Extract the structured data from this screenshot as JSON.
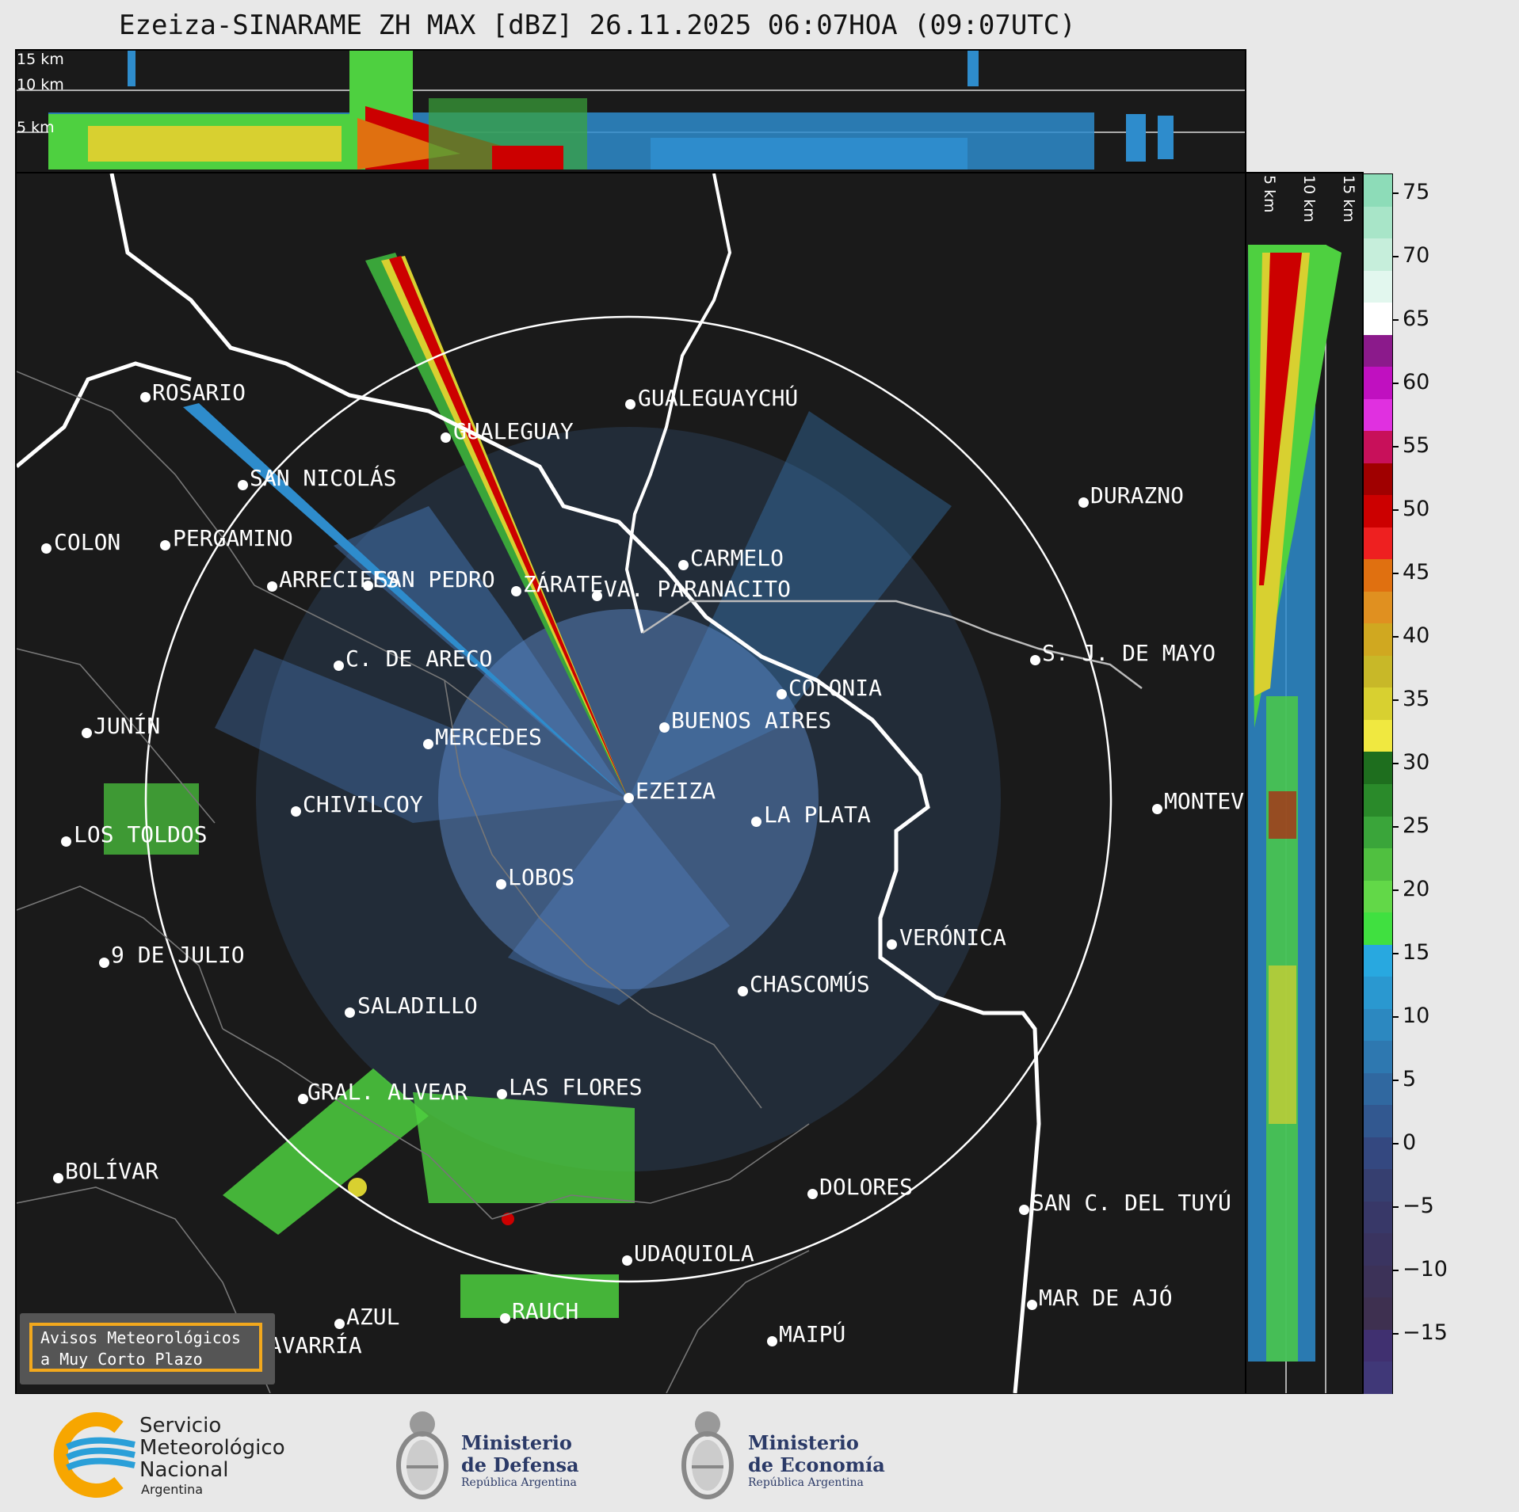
{
  "title": "Ezeiza-SINARAME ZH MAX [dBZ] 26.11.2025 06:07HOA (09:07UTC)",
  "top_panel": {
    "altitudes": [
      "15 km",
      "10 km",
      "5 km"
    ]
  },
  "side_panel": {
    "altitudes": [
      "5 km",
      "10 km",
      "15 km"
    ]
  },
  "colorbar": {
    "ticks": [
      "75",
      "70",
      "65",
      "60",
      "55",
      "50",
      "45",
      "40",
      "35",
      "30",
      "25",
      "20",
      "15",
      "10",
      "5",
      "0",
      "−5",
      "−10",
      "−15"
    ],
    "segments": [
      "#8ddcb8",
      "#a8e5c8",
      "#c6eedb",
      "#e2f7ee",
      "#ffffff",
      "#8b1a8b",
      "#c010c0",
      "#e030e0",
      "#c8105a",
      "#a00000",
      "#cc0000",
      "#ee2020",
      "#e07010",
      "#e09020",
      "#d0a820",
      "#c8b828",
      "#d8d030",
      "#f0e840",
      "#1e6e1e",
      "#2a8a2a",
      "#3aa53a",
      "#50c040",
      "#62d848",
      "#40e040",
      "#28a8e0",
      "#2a98d0",
      "#2c88c0",
      "#2e78b0",
      "#3068a0",
      "#325890",
      "#344880",
      "#363f70",
      "#383868",
      "#3a3460",
      "#3c3258",
      "#3e3050",
      "#403070",
      "#403878"
    ],
    "accent": "#f2a81d"
  },
  "cities": [
    {
      "name": "ROSARIO"
    },
    {
      "name": "SAN NICOLÁS"
    },
    {
      "name": "GUALEGUAY"
    },
    {
      "name": "GUALEGUAYCHÚ"
    },
    {
      "name": "DURAZNO"
    },
    {
      "name": "SAN PEDRO"
    },
    {
      "name": "VA. PARANACITO"
    },
    {
      "name": "COLON"
    },
    {
      "name": "PERGAMINO"
    },
    {
      "name": "CARMELO"
    },
    {
      "name": "ARRECIFES"
    },
    {
      "name": "ZÁRATE"
    },
    {
      "name": "S. J. DE MAYO"
    },
    {
      "name": "C. DE ARECO"
    },
    {
      "name": "COLONIA"
    },
    {
      "name": "JUNÍN"
    },
    {
      "name": "BUENOS AIRES"
    },
    {
      "name": "MERCEDES"
    },
    {
      "name": "MONTEV"
    },
    {
      "name": "EZEIZA"
    },
    {
      "name": "CHIVILCOY"
    },
    {
      "name": "LA PLATA"
    },
    {
      "name": "LOS TOLDOS"
    },
    {
      "name": "LOBOS"
    },
    {
      "name": "VERÓNICA"
    },
    {
      "name": "9 DE JULIO"
    },
    {
      "name": "CHASCOMÚS"
    },
    {
      "name": "SALADILLO"
    },
    {
      "name": "GRAL. ALVEAR"
    },
    {
      "name": "LAS FLORES"
    },
    {
      "name": "BOLÍVAR"
    },
    {
      "name": "DOLORES"
    },
    {
      "name": "SAN C. DEL TUYÚ"
    },
    {
      "name": "UDAQUIOLA"
    },
    {
      "name": "MAR DE AJÓ"
    },
    {
      "name": "AZUL"
    },
    {
      "name": "RAUCH"
    },
    {
      "name": "OLAVARRÍA"
    },
    {
      "name": "MAIPÚ"
    }
  ],
  "avisos": {
    "line1": "Avisos Meteorológicos",
    "line2": "a Muy Corto Plazo"
  },
  "footer": {
    "smn": {
      "line1": "Servicio",
      "line2": "Meteorológico",
      "line3": "Nacional",
      "line4": "Argentina"
    },
    "defensa": {
      "line1": "Ministerio",
      "line2": "de Defensa",
      "sub": "República Argentina"
    },
    "economia": {
      "line1": "Ministerio",
      "line2": "de Economía",
      "sub": "República Argentina"
    }
  }
}
